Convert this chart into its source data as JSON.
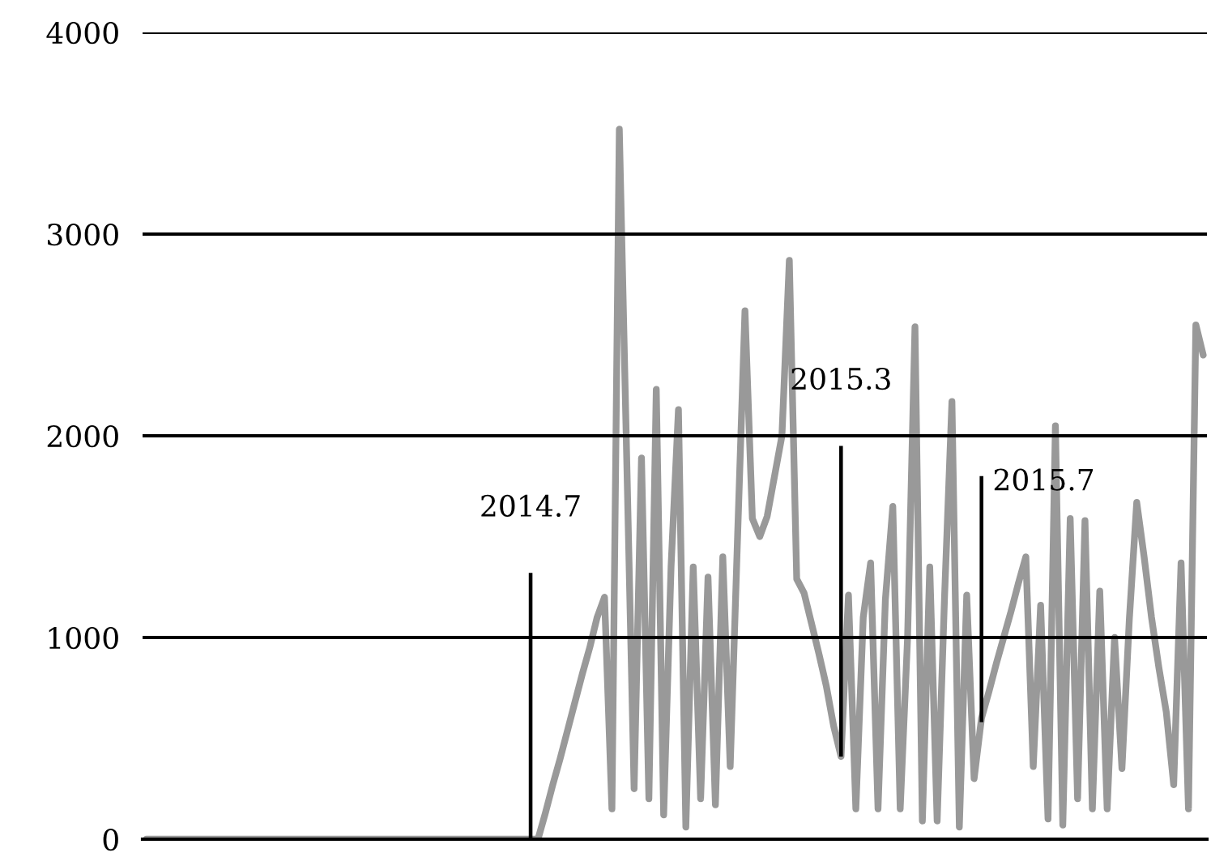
{
  "chart_data": {
    "type": "line",
    "categories": [
      null,
      null,
      null,
      null,
      null,
      null,
      null,
      null,
      null,
      null,
      null,
      null,
      null,
      null,
      null,
      null,
      null,
      null,
      null,
      null,
      null,
      null,
      null,
      null,
      null,
      null,
      null,
      null,
      null,
      null,
      null,
      null,
      null,
      null,
      null,
      null,
      null,
      null,
      null,
      null,
      null,
      null,
      null,
      null,
      null,
      null,
      null,
      null,
      null,
      null,
      null,
      null,
      null,
      null,
      null,
      null,
      null,
      null,
      null,
      null,
      null,
      null,
      null,
      null,
      null,
      null,
      null,
      null,
      null,
      null,
      null,
      null,
      null,
      null,
      null,
      null,
      null,
      null,
      null,
      null,
      null,
      null,
      null,
      null,
      null,
      null,
      null,
      null,
      null,
      null,
      null,
      null,
      null,
      null,
      null,
      null,
      null,
      null,
      null,
      null,
      null,
      null,
      null,
      null,
      null,
      null,
      null,
      null,
      null,
      null,
      null,
      null,
      null,
      null,
      null,
      null,
      null,
      null,
      null,
      null,
      null,
      null,
      null,
      null,
      null,
      null,
      null,
      null,
      null,
      null,
      null,
      null,
      null,
      null,
      null,
      null,
      null,
      null,
      null,
      null,
      null,
      null,
      null,
      null
    ],
    "series": [
      {
        "color": "#999999",
        "values": [
          0,
          0,
          0,
          0,
          0,
          0,
          0,
          0,
          0,
          0,
          0,
          0,
          0,
          0,
          0,
          0,
          0,
          0,
          0,
          0,
          0,
          0,
          0,
          0,
          0,
          0,
          0,
          0,
          0,
          0,
          0,
          0,
          0,
          0,
          0,
          0,
          0,
          0,
          0,
          0,
          0,
          0,
          0,
          0,
          0,
          0,
          0,
          0,
          0,
          0,
          0,
          0,
          0,
          0,
          130,
          270,
          400,
          540,
          680,
          820,
          950,
          1100,
          1200,
          150,
          3520,
          1890,
          250,
          1890,
          200,
          2230,
          120,
          1350,
          2130,
          60,
          1350,
          200,
          1300,
          170,
          1400,
          360,
          1500,
          2620,
          1590,
          1500,
          1600,
          1800,
          2000,
          2870,
          1290,
          1220,
          1070,
          920,
          760,
          560,
          410,
          1210,
          150,
          1100,
          1370,
          150,
          1190,
          1650,
          150,
          1000,
          2540,
          90,
          1350,
          90,
          1200,
          2170,
          60,
          1210,
          300,
          600,
          730,
          870,
          1000,
          1130,
          1270,
          1400,
          360,
          1160,
          100,
          2050,
          70,
          1590,
          200,
          1580,
          150,
          1230,
          150,
          1000,
          350,
          1090,
          1670,
          1400,
          1100,
          850,
          630,
          270,
          1370,
          150,
          2550,
          2400
        ]
      },
      {
        "type": "bar",
        "color": "#000000",
        "values": [
          null,
          null,
          null,
          null,
          null,
          null,
          null,
          null,
          null,
          null,
          null,
          null,
          null,
          null,
          null,
          null,
          null,
          null,
          null,
          null,
          null,
          null,
          null,
          null,
          null,
          null,
          null,
          null,
          null,
          null,
          null,
          null,
          null,
          null,
          null,
          null,
          null,
          null,
          null,
          null,
          null,
          null,
          null,
          null,
          null,
          null,
          null,
          null,
          null,
          null,
          null,
          null,
          1320,
          null,
          null,
          null,
          null,
          null,
          null,
          null,
          null,
          null,
          null,
          null,
          null,
          null,
          null,
          null,
          null,
          null,
          null,
          null,
          null,
          null,
          null,
          null,
          null,
          null,
          null,
          null,
          null,
          null,
          null,
          null,
          null,
          null,
          null,
          null,
          null,
          null,
          null,
          null,
          null,
          null,
          1540,
          null,
          null,
          null,
          null,
          null,
          null,
          null,
          null,
          null,
          null,
          null,
          null,
          null,
          null,
          null,
          null,
          null,
          null,
          1220,
          null,
          null,
          null,
          null,
          null,
          null,
          null,
          null,
          null,
          null,
          null,
          null,
          null,
          null,
          null,
          null,
          null,
          null,
          null,
          null,
          null,
          null,
          null,
          null,
          null,
          null,
          null,
          null,
          null,
          null
        ],
        "base": [
          null,
          null,
          null,
          null,
          null,
          null,
          null,
          null,
          null,
          null,
          null,
          null,
          null,
          null,
          null,
          null,
          null,
          null,
          null,
          null,
          null,
          null,
          null,
          null,
          null,
          null,
          null,
          null,
          null,
          null,
          null,
          null,
          null,
          null,
          null,
          null,
          null,
          null,
          null,
          null,
          null,
          null,
          null,
          null,
          null,
          null,
          null,
          null,
          null,
          null,
          null,
          null,
          0,
          null,
          null,
          null,
          null,
          null,
          null,
          null,
          null,
          null,
          null,
          null,
          null,
          null,
          null,
          null,
          null,
          null,
          null,
          null,
          null,
          null,
          null,
          null,
          null,
          null,
          null,
          null,
          null,
          null,
          null,
          null,
          null,
          null,
          null,
          null,
          null,
          null,
          null,
          null,
          null,
          null,
          410,
          null,
          null,
          null,
          null,
          null,
          null,
          null,
          null,
          null,
          null,
          null,
          null,
          null,
          null,
          null,
          null,
          null,
          null,
          580,
          null,
          null,
          null,
          null,
          null,
          null,
          null,
          null,
          null,
          null,
          null,
          null,
          null,
          null,
          null,
          null,
          null,
          null,
          null,
          null,
          null,
          null,
          null,
          null,
          null,
          null,
          null,
          null,
          null,
          null
        ]
      }
    ],
    "annotations": [
      "2014.7",
      "2015.3",
      "2015.7"
    ],
    "ylim": [
      0,
      4000
    ],
    "yticks": [
      0,
      1000,
      2000,
      3000,
      4000
    ],
    "grid": "y",
    "tick_labels": "y",
    "legend": false
  }
}
